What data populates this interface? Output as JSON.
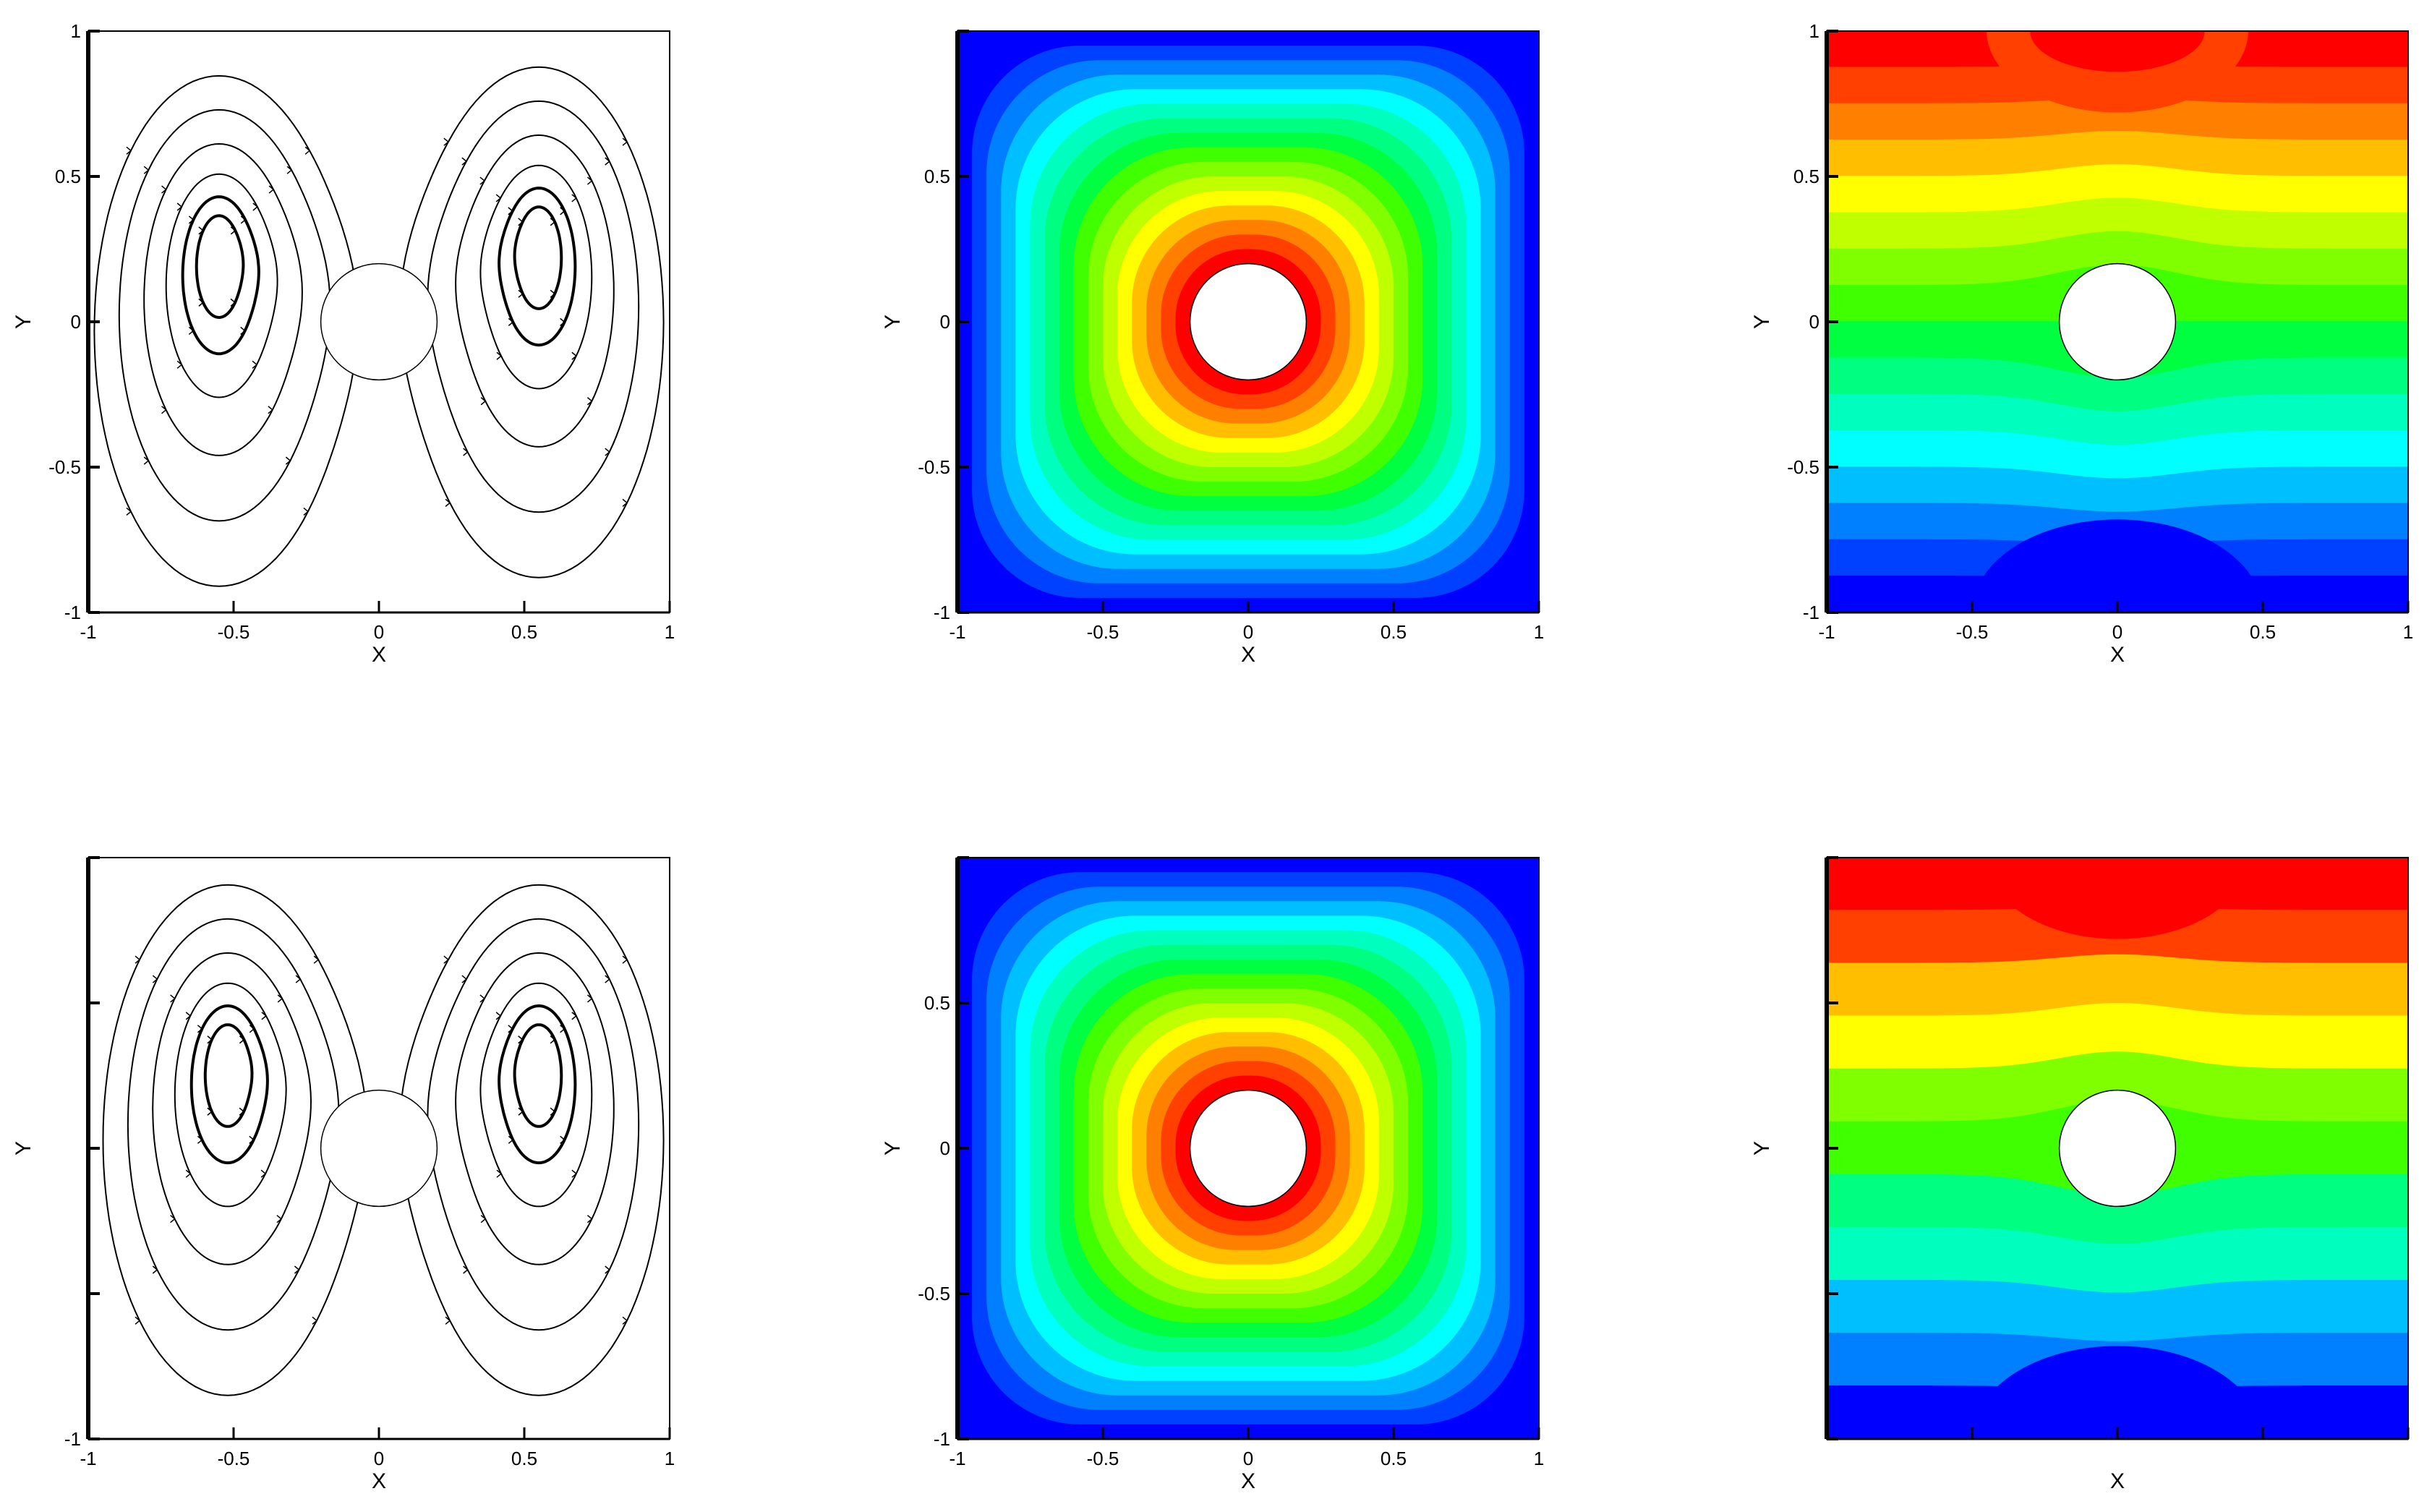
{
  "figure": {
    "rows": 2,
    "cols": 3
  },
  "chart_data": [
    {
      "id": "top-streamlines",
      "type": "streamline",
      "xlabel": "X",
      "ylabel": "Y",
      "xlim": [
        -1,
        1
      ],
      "ylim": [
        -1,
        1
      ],
      "xticks": [
        "-1",
        "-0.5",
        "0",
        "0.5",
        "1"
      ],
      "yticks": [
        "-1",
        "-0.5",
        "0",
        "0.5",
        "1"
      ],
      "cylinder": {
        "cx": 0,
        "cy": 0,
        "r": 0.2
      },
      "vortex_centers": [
        [
          -0.55,
          0.22
        ],
        [
          0.55,
          0.25
        ]
      ],
      "stroke": "#000000"
    },
    {
      "id": "top-temperature",
      "type": "filled-contour",
      "field": "radial",
      "xlabel": "X",
      "ylabel": "Y",
      "xlim": [
        -1,
        1
      ],
      "ylim": [
        -1,
        1
      ],
      "xticks": [
        "-1",
        "-0.5",
        "0",
        "0.5",
        "1"
      ],
      "yticks": [
        "-1",
        "-0.5",
        "0",
        "0.5"
      ],
      "cylinder": {
        "cx": 0,
        "cy": 0,
        "r": 0.2
      },
      "levels": 16,
      "palette": [
        "#0000ff",
        "#0040ff",
        "#0080ff",
        "#00bfff",
        "#00ffff",
        "#00ffbf",
        "#00ff80",
        "#00ff40",
        "#40ff00",
        "#80ff00",
        "#bfff00",
        "#ffff00",
        "#ffbf00",
        "#ff8000",
        "#ff4000",
        "#ff0000"
      ]
    },
    {
      "id": "top-vertical-field",
      "type": "filled-contour",
      "field": "vertical",
      "xlabel": "X",
      "ylabel": "Y",
      "xlim": [
        -1,
        1
      ],
      "ylim": [
        -1,
        1
      ],
      "xticks": [
        "-1",
        "-0.5",
        "0",
        "0.5",
        "1"
      ],
      "yticks": [
        "-1",
        "-0.5",
        "0",
        "0.5",
        "1"
      ],
      "cylinder": {
        "cx": 0,
        "cy": 0,
        "r": 0.2
      },
      "levels": 16,
      "palette": [
        "#0000ff",
        "#0040ff",
        "#0080ff",
        "#00bfff",
        "#00ffff",
        "#00ffbf",
        "#00ff80",
        "#00ff40",
        "#40ff00",
        "#80ff00",
        "#bfff00",
        "#ffff00",
        "#ffbf00",
        "#ff8000",
        "#ff4000",
        "#ff0000"
      ]
    },
    {
      "id": "bottom-streamlines",
      "type": "streamline",
      "xlabel": "X",
      "ylabel": "Y",
      "xlim": [
        -1,
        1
      ],
      "ylim": [
        -1,
        1
      ],
      "xticks": [
        "-1",
        "-0.5",
        "0",
        "0.5",
        "1"
      ],
      "yticks": [
        "-1",
        "",
        "",
        "",
        ""
      ],
      "cylinder": {
        "cx": 0,
        "cy": 0,
        "r": 0.2
      },
      "vortex_centers": [
        [
          -0.52,
          0.28
        ],
        [
          0.55,
          0.28
        ]
      ],
      "stroke": "#000000"
    },
    {
      "id": "bottom-temperature",
      "type": "filled-contour",
      "field": "radial",
      "xlabel": "X",
      "ylabel": "Y",
      "xlim": [
        -1,
        1
      ],
      "ylim": [
        -1,
        1
      ],
      "xticks": [
        "-1",
        "-0.5",
        "0",
        "0.5",
        "1"
      ],
      "yticks": [
        "-1",
        "-0.5",
        "0",
        "0.5"
      ],
      "cylinder": {
        "cx": 0,
        "cy": 0,
        "r": 0.2
      },
      "levels": 16,
      "palette": [
        "#0000ff",
        "#0040ff",
        "#0080ff",
        "#00bfff",
        "#00ffff",
        "#00ffbf",
        "#00ff80",
        "#00ff40",
        "#40ff00",
        "#80ff00",
        "#bfff00",
        "#ffff00",
        "#ffbf00",
        "#ff8000",
        "#ff4000",
        "#ff0000"
      ]
    },
    {
      "id": "bottom-vertical-field",
      "type": "filled-contour",
      "field": "vertical",
      "xlabel": "X",
      "ylabel": "Y",
      "xlim": [
        -1,
        1
      ],
      "ylim": [
        -1,
        1
      ],
      "xticks": [
        "",
        "",
        "",
        "",
        ""
      ],
      "yticks": [
        "",
        "",
        "",
        "",
        ""
      ],
      "cylinder": {
        "cx": 0,
        "cy": 0,
        "r": 0.2
      },
      "levels": 11,
      "palette": [
        "#0000ff",
        "#0040ff",
        "#0080ff",
        "#00bfff",
        "#00ffff",
        "#00ffbf",
        "#00ff80",
        "#00ff40",
        "#40ff00",
        "#80ff00",
        "#bfff00",
        "#ffff00",
        "#ffbf00",
        "#ff8000",
        "#ff4000",
        "#ff0000"
      ]
    }
  ]
}
